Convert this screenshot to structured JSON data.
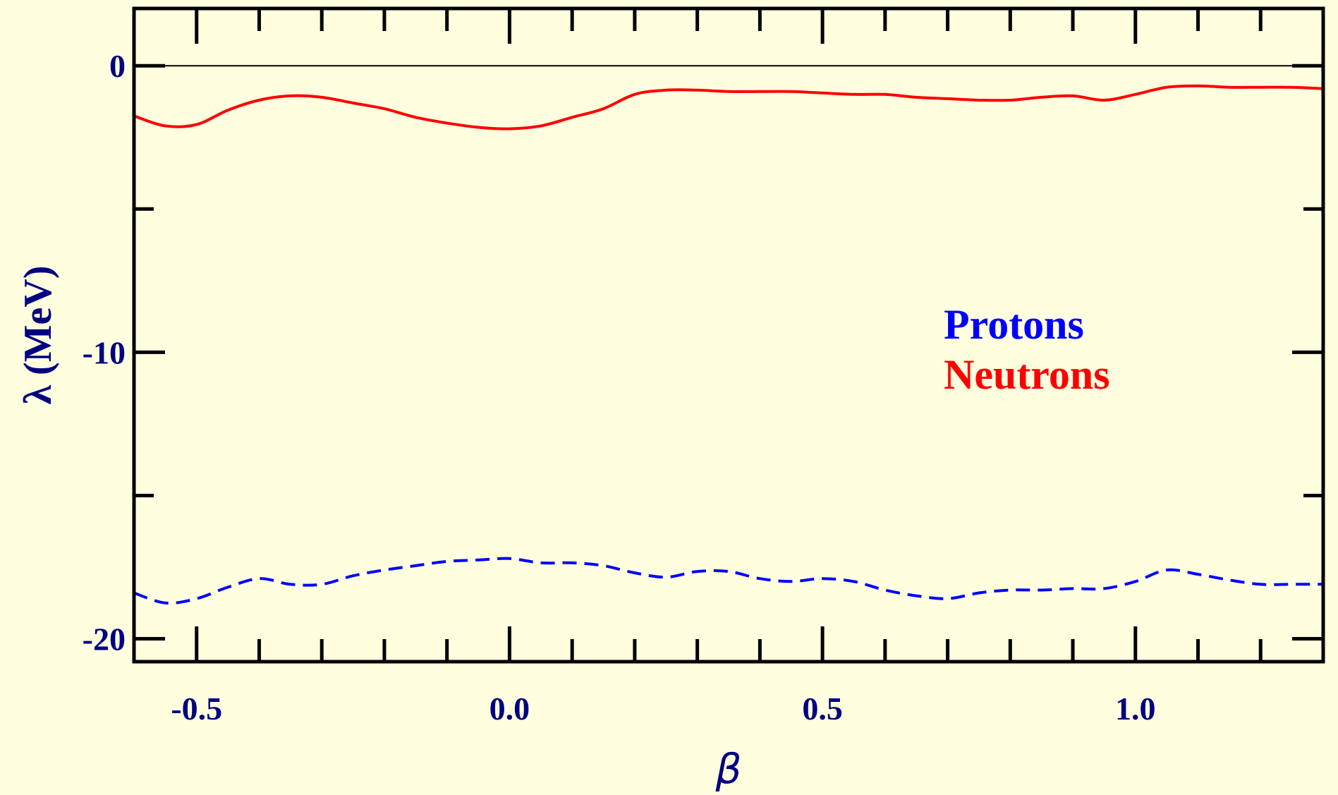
{
  "colors": {
    "background": "#ffffe0",
    "axis": "#000000",
    "label": "#000080",
    "protons": "#0000ff",
    "neutrons": "#ff0000"
  },
  "chart_data": {
    "type": "line",
    "title": "",
    "xlabel": "β",
    "ylabel": "λ (MeV)",
    "xlim": [
      -0.6,
      1.3
    ],
    "ylim": [
      -20.8,
      2.0
    ],
    "xticks": [
      -0.5,
      0.0,
      0.5,
      1.0
    ],
    "xtick_labels": [
      "-0.5",
      "0.0",
      "0.5",
      "1.0"
    ],
    "yticks": [
      0,
      -10,
      -20
    ],
    "ytick_labels": [
      "0",
      "-10",
      "-20"
    ],
    "x_minor_step": 0.1,
    "y_minor_step": 5,
    "grid": false,
    "reference_line_y": 0,
    "legend_placement": "right-middle",
    "series": [
      {
        "name": "Protons",
        "style": "dashed",
        "color": "#0000ff",
        "x": [
          -0.6,
          -0.55,
          -0.5,
          -0.45,
          -0.4,
          -0.35,
          -0.3,
          -0.25,
          -0.2,
          -0.15,
          -0.1,
          -0.05,
          0.0,
          0.05,
          0.1,
          0.15,
          0.2,
          0.25,
          0.3,
          0.35,
          0.4,
          0.45,
          0.5,
          0.55,
          0.6,
          0.65,
          0.7,
          0.75,
          0.8,
          0.85,
          0.9,
          0.95,
          1.0,
          1.05,
          1.1,
          1.15,
          1.2,
          1.25,
          1.3
        ],
        "y": [
          -18.4,
          -18.75,
          -18.6,
          -18.2,
          -17.9,
          -18.1,
          -18.1,
          -17.8,
          -17.6,
          -17.45,
          -17.3,
          -17.25,
          -17.2,
          -17.35,
          -17.35,
          -17.45,
          -17.7,
          -17.85,
          -17.65,
          -17.65,
          -17.9,
          -18.0,
          -17.9,
          -18.0,
          -18.3,
          -18.5,
          -18.6,
          -18.4,
          -18.3,
          -18.3,
          -18.25,
          -18.25,
          -18.0,
          -17.6,
          -17.75,
          -17.95,
          -18.1,
          -18.1,
          -18.1
        ]
      },
      {
        "name": "Neutrons",
        "style": "solid",
        "color": "#ff0000",
        "x": [
          -0.6,
          -0.55,
          -0.5,
          -0.45,
          -0.4,
          -0.35,
          -0.3,
          -0.25,
          -0.2,
          -0.15,
          -0.1,
          -0.05,
          0.0,
          0.05,
          0.1,
          0.15,
          0.2,
          0.25,
          0.3,
          0.35,
          0.4,
          0.45,
          0.5,
          0.55,
          0.6,
          0.65,
          0.7,
          0.75,
          0.8,
          0.85,
          0.9,
          0.95,
          1.0,
          1.05,
          1.1,
          1.15,
          1.2,
          1.25,
          1.3
        ],
        "y": [
          -1.75,
          -2.1,
          -2.05,
          -1.55,
          -1.2,
          -1.05,
          -1.1,
          -1.3,
          -1.5,
          -1.8,
          -2.0,
          -2.15,
          -2.2,
          -2.1,
          -1.8,
          -1.5,
          -1.0,
          -0.85,
          -0.85,
          -0.9,
          -0.9,
          -0.9,
          -0.95,
          -1.0,
          -1.0,
          -1.1,
          -1.15,
          -1.2,
          -1.2,
          -1.1,
          -1.05,
          -1.2,
          -1.0,
          -0.75,
          -0.7,
          -0.75,
          -0.75,
          -0.75,
          -0.8
        ]
      }
    ]
  }
}
